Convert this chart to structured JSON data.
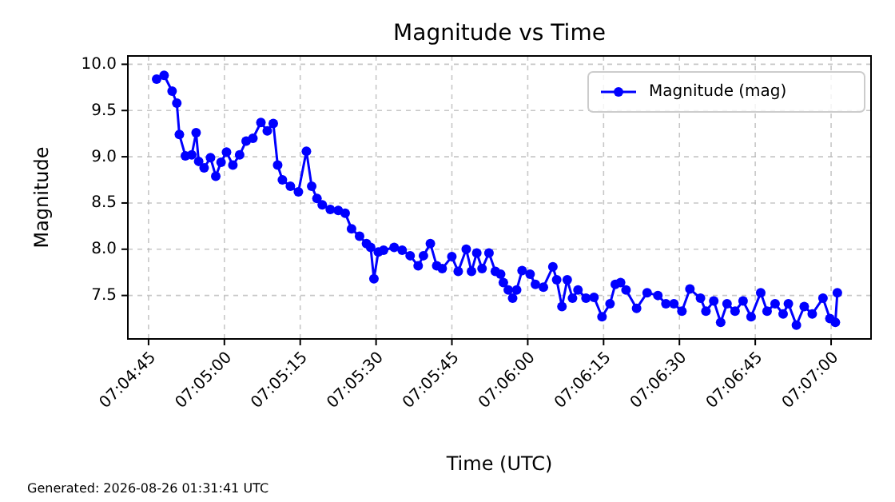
{
  "chart_data": {
    "type": "line",
    "title": "Magnitude vs Time",
    "xlabel": "Time (UTC)",
    "ylabel": "Magnitude",
    "annotations": [
      "Generated: 2026-08-26 01:31:41 UTC"
    ],
    "x": [
      7.07961,
      7.08002,
      7.08046,
      7.08072,
      7.08086,
      7.08119,
      7.08154,
      7.08178,
      7.08192,
      7.08222,
      7.08257,
      7.08286,
      7.08315,
      7.08345,
      7.0838,
      7.08417,
      7.08453,
      7.0849,
      7.08534,
      7.08569,
      7.08602,
      7.08626,
      7.08652,
      7.08696,
      7.0874,
      7.08784,
      7.08813,
      7.08842,
      7.08871,
      7.08915,
      7.08959,
      7.08997,
      7.09032,
      7.09076,
      7.09114,
      7.09137,
      7.09155,
      7.09179,
      7.09208,
      7.09266,
      7.0931,
      7.09354,
      7.09398,
      7.09427,
      7.09465,
      7.095,
      7.0953,
      7.09583,
      7.09618,
      7.09662,
      7.09691,
      7.0972,
      7.09749,
      7.09787,
      7.09822,
      7.09851,
      7.09866,
      7.09893,
      7.09917,
      7.09939,
      7.09969,
      7.10013,
      7.10042,
      7.10086,
      7.10138,
      7.10159,
      7.10188,
      7.10217,
      7.10246,
      7.10276,
      7.1032,
      7.10364,
      7.10408,
      7.10452,
      7.10481,
      7.1051,
      7.1054,
      7.10598,
      7.10656,
      7.10715,
      7.10759,
      7.10803,
      7.10847,
      7.10891,
      7.10949,
      7.10979,
      7.11022,
      7.1106,
      7.11095,
      7.11139,
      7.11183,
      7.11227,
      7.1128,
      7.11315,
      7.11359,
      7.11403,
      7.11432,
      7.11476,
      7.11519,
      7.11563,
      7.11622,
      7.1166,
      7.1169,
      7.11701
    ],
    "series": [
      {
        "name": "Magnitude (mag)",
        "color": "#0000ff",
        "values": [
          9.84,
          9.88,
          9.71,
          9.58,
          9.24,
          9.01,
          9.02,
          9.26,
          8.95,
          8.88,
          8.99,
          8.79,
          8.94,
          9.05,
          8.91,
          9.02,
          9.17,
          9.2,
          9.37,
          9.28,
          9.36,
          8.91,
          8.75,
          8.68,
          8.62,
          9.06,
          8.68,
          8.55,
          8.48,
          8.43,
          8.42,
          8.39,
          8.22,
          8.14,
          8.06,
          8.02,
          7.68,
          7.97,
          7.99,
          8.02,
          7.99,
          7.93,
          7.82,
          7.93,
          8.06,
          7.82,
          7.79,
          7.92,
          7.76,
          8.0,
          7.76,
          7.96,
          7.79,
          7.96,
          7.76,
          7.73,
          7.64,
          7.56,
          7.47,
          7.56,
          7.77,
          7.73,
          7.62,
          7.59,
          7.81,
          7.67,
          7.38,
          7.67,
          7.47,
          7.56,
          7.47,
          7.48,
          7.27,
          7.41,
          7.62,
          7.64,
          7.56,
          7.36,
          7.53,
          7.5,
          7.41,
          7.41,
          7.33,
          7.57,
          7.47,
          7.33,
          7.44,
          7.21,
          7.41,
          7.33,
          7.44,
          7.27,
          7.53,
          7.33,
          7.41,
          7.3,
          7.41,
          7.18,
          7.38,
          7.3,
          7.47,
          7.25,
          7.21,
          7.53
        ]
      }
    ],
    "xlim": [
      7.07803,
      7.11886
    ],
    "xticks": [
      {
        "value": 7.079167,
        "label": "07:04:45"
      },
      {
        "value": 7.083333,
        "label": "07:05:00"
      },
      {
        "value": 7.0875,
        "label": "07:05:15"
      },
      {
        "value": 7.091667,
        "label": "07:05:30"
      },
      {
        "value": 7.095833,
        "label": "07:05:45"
      },
      {
        "value": 7.1,
        "label": "07:06:00"
      },
      {
        "value": 7.104167,
        "label": "07:06:15"
      },
      {
        "value": 7.108333,
        "label": "07:06:30"
      },
      {
        "value": 7.1125,
        "label": "07:06:45"
      },
      {
        "value": 7.116667,
        "label": "07:07:00"
      }
    ],
    "ylim": [
      7.03,
      10.09
    ],
    "yticks": [
      {
        "value": 7.5,
        "label": "7.5"
      },
      {
        "value": 8,
        "label": "8.0"
      },
      {
        "value": 8.5,
        "label": "8.5"
      },
      {
        "value": 9,
        "label": "9.0"
      },
      {
        "value": 9.5,
        "label": "9.5"
      },
      {
        "value": 10,
        "label": "10.0"
      }
    ],
    "grid": true,
    "legend": "top right",
    "marker": "circle",
    "line_style": "solid"
  }
}
